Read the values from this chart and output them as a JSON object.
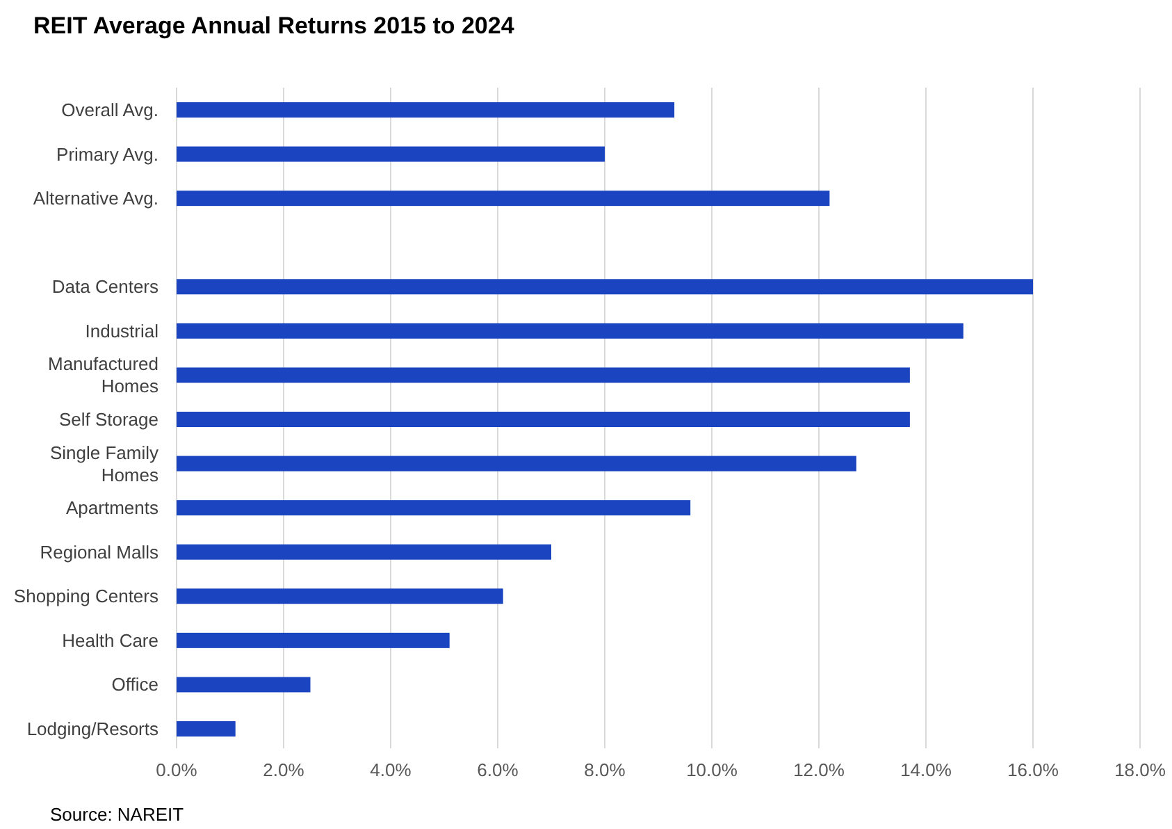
{
  "chart_data": {
    "type": "bar",
    "orientation": "horizontal",
    "title": "REIT Average Annual Returns 2015 to 2024",
    "categories": [
      "Overall Avg.",
      "Primary Avg.",
      "Alternative Avg.",
      null,
      "Data Centers",
      "Industrial",
      "Manufactured Homes",
      "Self Storage",
      "Single Family Homes",
      "Apartments",
      "Regional Malls",
      "Shopping Centers",
      "Health Care",
      "Office",
      "Lodging/Resorts"
    ],
    "values": [
      9.3,
      8.0,
      12.2,
      null,
      16.0,
      14.7,
      13.7,
      13.7,
      12.7,
      9.6,
      7.0,
      6.1,
      5.1,
      2.5,
      1.1
    ],
    "color": "#1a44c0",
    "xlim": [
      0,
      18
    ],
    "xticks": [
      {
        "value": 0,
        "label": "0.0%"
      },
      {
        "value": 2,
        "label": "2.0%"
      },
      {
        "value": 4,
        "label": "4.0%"
      },
      {
        "value": 6,
        "label": "6.0%"
      },
      {
        "value": 8,
        "label": "8.0%"
      },
      {
        "value": 10,
        "label": "10.0%"
      },
      {
        "value": 12,
        "label": "12.0%"
      },
      {
        "value": 14,
        "label": "14.0%"
      },
      {
        "value": 16,
        "label": "16.0%"
      },
      {
        "value": 18,
        "label": "18.0%"
      }
    ],
    "grid": "x",
    "annotations": [
      "Source: NAREIT"
    ]
  }
}
